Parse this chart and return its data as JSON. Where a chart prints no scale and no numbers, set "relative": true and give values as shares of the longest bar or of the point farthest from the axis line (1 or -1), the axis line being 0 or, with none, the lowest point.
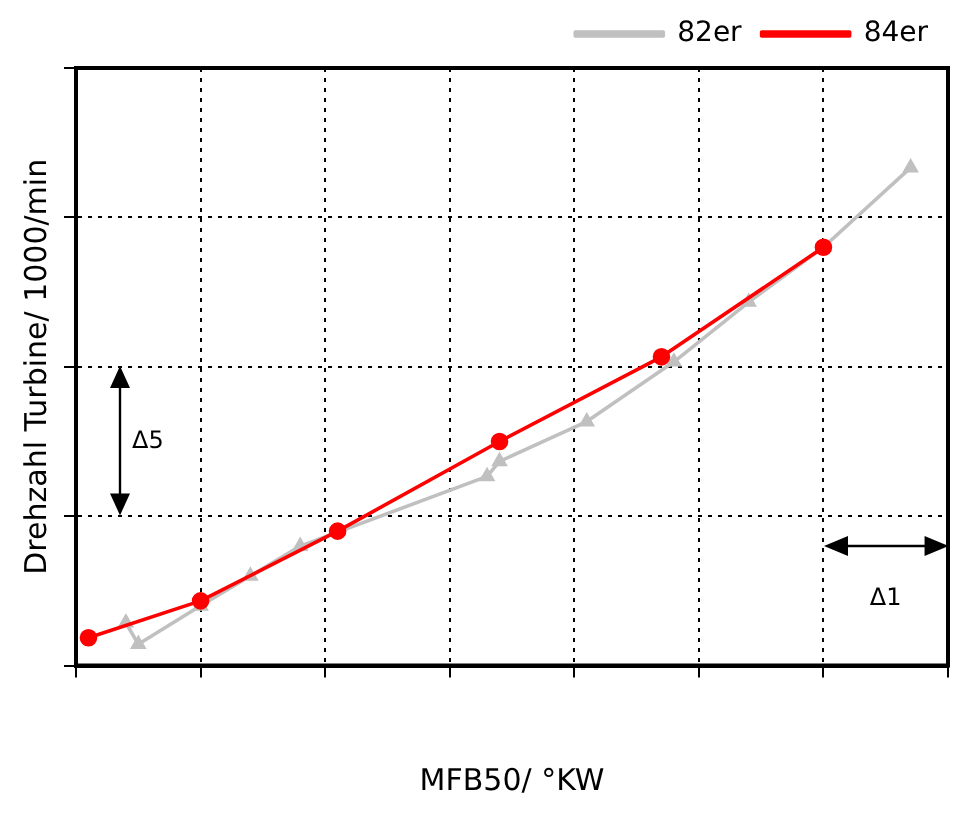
{
  "chart_data": {
    "type": "line",
    "xlabel": "MFB50/ °KW",
    "ylabel": "Drehzahl Turbine/ 1000/min",
    "relative": true,
    "grid": true,
    "legend": "top right",
    "line_style": "solid",
    "annotations": [
      "Δ5",
      "Δ1"
    ],
    "categories": [
      null,
      null,
      null,
      null,
      null,
      null,
      null,
      null,
      null,
      null,
      null,
      null,
      null,
      null,
      null,
      null,
      null,
      null,
      null,
      null,
      null,
      null,
      null,
      null,
      null,
      null,
      null,
      null,
      null,
      null,
      null,
      null,
      null,
      null,
      null,
      null,
      null,
      null,
      null,
      null,
      null,
      null,
      null,
      null,
      null,
      null,
      null,
      null,
      null,
      null,
      null,
      null,
      null,
      null,
      null,
      null,
      null,
      null,
      null,
      null,
      null,
      null,
      null,
      null,
      null,
      null,
      null,
      null,
      null,
      null,
      null
    ],
    "series": [
      {
        "name": "82er",
        "color": "#c0c0c0",
        "marker": "triangle",
        "values": [
          null,
          null,
          null,
          null,
          0.086,
          0.043,
          null,
          null,
          null,
          null,
          0.12,
          null,
          null,
          null,
          0.18,
          null,
          null,
          null,
          0.24,
          null,
          null,
          null,
          null,
          null,
          null,
          null,
          null,
          null,
          null,
          null,
          null,
          null,
          null,
          0.38,
          0.41,
          null,
          null,
          null,
          null,
          null,
          null,
          0.49,
          null,
          null,
          null,
          null,
          null,
          null,
          0.61,
          null,
          null,
          null,
          null,
          null,
          0.73,
          null,
          null,
          null,
          null,
          null,
          0.84,
          null,
          null,
          null,
          null,
          null,
          null,
          1,
          null,
          null,
          null
        ]
      },
      {
        "name": "84er",
        "color": "#ff0000",
        "marker": "circle",
        "values": [
          null,
          0.056,
          null,
          null,
          null,
          null,
          null,
          null,
          null,
          null,
          0.13,
          null,
          null,
          null,
          null,
          null,
          null,
          null,
          null,
          null,
          null,
          0.27,
          null,
          null,
          null,
          null,
          null,
          null,
          null,
          null,
          null,
          null,
          null,
          null,
          0.45,
          null,
          null,
          null,
          null,
          null,
          null,
          null,
          null,
          null,
          null,
          null,
          null,
          0.62,
          null,
          null,
          null,
          null,
          null,
          null,
          null,
          null,
          null,
          null,
          null,
          null,
          0.84,
          null,
          null,
          null,
          null,
          null,
          null,
          null,
          null,
          null,
          null
        ]
      }
    ]
  }
}
